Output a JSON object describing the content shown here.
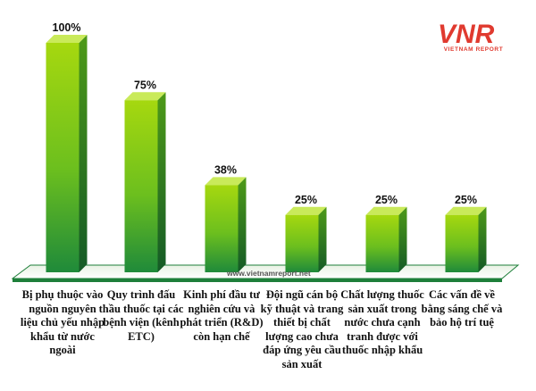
{
  "chart_data": {
    "type": "bar",
    "categories": [
      "Bị phụ thuộc vào nguồn nguyên liệu chủ yếu nhập khẩu từ nước ngoài",
      "Quy trình đấu thầu thuốc tại các bệnh viện (kênh ETC)",
      "Kinh phí đầu tư nghiên cứu và phát triển (R&D) còn hạn chế",
      "Đội ngũ cán bộ kỹ thuật và trang thiết bị chất lượng cao chưa đáp ứng yêu cầu sản xuất",
      "Chất lượng thuốc sản xuất trong nước chưa cạnh tranh được với thuốc nhập khẩu",
      "Các vấn đề về bằng sáng chế và bảo hộ trí tuệ"
    ],
    "values": [
      100,
      75,
      38,
      25,
      25,
      25
    ],
    "value_labels": [
      "100%",
      "75%",
      "38%",
      "25%",
      "25%",
      "25%"
    ],
    "ylim": [
      0,
      100
    ],
    "colors": {
      "bar_light": "#9dd40e",
      "bar_dark": "#1f8a3a",
      "side": "#1a6b2d",
      "top": "#c9ea5a",
      "floor": "#1e7f3a"
    }
  },
  "watermark": "www.vietnamreport.net",
  "logo": {
    "text": "VNR",
    "subtitle": "VIETNAM REPORT",
    "color": "#e03a2f"
  }
}
